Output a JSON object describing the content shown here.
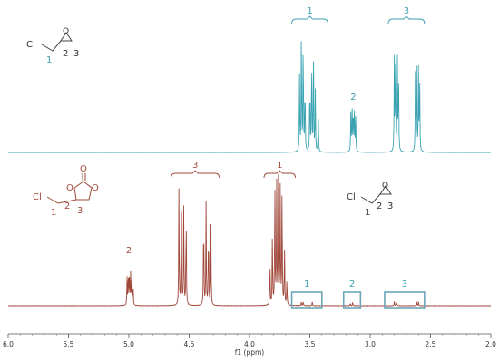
{
  "colors": {
    "top_spectrum": "#3aa3b2",
    "bottom_spectrum": "#a0473a",
    "top_labels": "#3d9fad",
    "bottom_labels": "#a04a38",
    "structure_lines": "#444444",
    "highlight_box": "#6aa6b8"
  },
  "chart_data": {
    "type": "line",
    "xlabel": "f1 (ppm)",
    "xlim": [
      6.0,
      2.0
    ],
    "x_reversed": true,
    "xticks": [
      "6.0",
      "5.5",
      "5.0",
      "4.5",
      "4.0",
      "3.5",
      "3.0",
      "2.5",
      "2.0"
    ],
    "series": [
      {
        "id": "top",
        "peaks": [
          {
            "ppm": 3.585,
            "height": 0.62
          },
          {
            "ppm": 3.57,
            "height": 0.98
          },
          {
            "ppm": 3.555,
            "height": 1.0
          },
          {
            "ppm": 3.54,
            "height": 0.6
          },
          {
            "ppm": 3.5,
            "height": 0.6
          },
          {
            "ppm": 3.485,
            "height": 0.82
          },
          {
            "ppm": 3.47,
            "height": 0.8
          },
          {
            "ppm": 3.455,
            "height": 0.5
          },
          {
            "ppm": 3.43,
            "height": 0.3
          },
          {
            "ppm": 3.16,
            "height": 0.3
          },
          {
            "ppm": 3.15,
            "height": 0.36
          },
          {
            "ppm": 3.14,
            "height": 0.38
          },
          {
            "ppm": 3.13,
            "height": 0.34
          },
          {
            "ppm": 3.12,
            "height": 0.26
          },
          {
            "ppm": 2.8,
            "height": 0.72
          },
          {
            "ppm": 2.79,
            "height": 0.76
          },
          {
            "ppm": 2.775,
            "height": 0.74
          },
          {
            "ppm": 2.765,
            "height": 0.7
          },
          {
            "ppm": 2.625,
            "height": 0.63
          },
          {
            "ppm": 2.615,
            "height": 0.66
          },
          {
            "ppm": 2.6,
            "height": 0.64
          },
          {
            "ppm": 2.59,
            "height": 0.6
          }
        ],
        "annotations": [
          {
            "label": "1",
            "from": 3.65,
            "to": 3.35,
            "bracket": true
          },
          {
            "label": "2",
            "at": 3.14,
            "bracket": false
          },
          {
            "label": "3",
            "from": 2.85,
            "to": 2.55,
            "bracket": true
          }
        ],
        "structure_labels": {
          "cl": "Cl",
          "n1": "1",
          "n2": "2",
          "n3": "3",
          "o": "O"
        }
      },
      {
        "id": "bottom",
        "peaks": [
          {
            "ppm": 5.015,
            "height": 0.22
          },
          {
            "ppm": 5.005,
            "height": 0.26
          },
          {
            "ppm": 4.995,
            "height": 0.27
          },
          {
            "ppm": 4.985,
            "height": 0.25
          },
          {
            "ppm": 4.975,
            "height": 0.2
          },
          {
            "ppm": 4.965,
            "height": 0.16
          },
          {
            "ppm": 4.585,
            "height": 0.93
          },
          {
            "ppm": 4.565,
            "height": 0.97
          },
          {
            "ppm": 4.545,
            "height": 0.78
          },
          {
            "ppm": 4.525,
            "height": 0.78
          },
          {
            "ppm": 4.38,
            "height": 0.77
          },
          {
            "ppm": 4.36,
            "height": 0.79
          },
          {
            "ppm": 4.34,
            "height": 0.66
          },
          {
            "ppm": 4.32,
            "height": 0.62
          },
          {
            "ppm": 3.83,
            "height": 0.32
          },
          {
            "ppm": 3.81,
            "height": 0.58
          },
          {
            "ppm": 3.79,
            "height": 1.0
          },
          {
            "ppm": 3.775,
            "height": 0.97
          },
          {
            "ppm": 3.76,
            "height": 0.96
          },
          {
            "ppm": 3.745,
            "height": 0.93
          },
          {
            "ppm": 3.73,
            "height": 0.95
          },
          {
            "ppm": 3.71,
            "height": 0.48
          },
          {
            "ppm": 3.69,
            "height": 0.2
          },
          {
            "ppm": 3.57,
            "height": 0.03
          },
          {
            "ppm": 3.555,
            "height": 0.035
          },
          {
            "ppm": 3.48,
            "height": 0.03
          },
          {
            "ppm": 3.165,
            "height": 0.02
          },
          {
            "ppm": 3.145,
            "height": 0.025
          },
          {
            "ppm": 2.8,
            "height": 0.03
          },
          {
            "ppm": 2.78,
            "height": 0.03
          },
          {
            "ppm": 2.615,
            "height": 0.03
          },
          {
            "ppm": 2.6,
            "height": 0.03
          }
        ],
        "annotations": [
          {
            "label": "3",
            "from": 4.65,
            "to": 4.25,
            "bracket": true
          },
          {
            "label": "1",
            "from": 3.88,
            "to": 3.62,
            "bracket": true
          },
          {
            "label": "2",
            "at": 5.0,
            "bracket": false
          }
        ],
        "highlight_boxes": [
          {
            "label": "1",
            "from": 3.65,
            "to": 3.4
          },
          {
            "label": "2",
            "from": 3.22,
            "to": 3.08
          },
          {
            "label": "3",
            "from": 2.88,
            "to": 2.55
          }
        ],
        "structure_labels": {
          "cl": "Cl",
          "n1": "1",
          "n2": "2",
          "n3": "3",
          "o_ring_left": "O",
          "o_ring_right": "O",
          "o_carbonyl": "O"
        },
        "inset_structure_labels": {
          "cl": "Cl",
          "n1": "1",
          "n2": "2",
          "n3": "3",
          "o": "O"
        }
      }
    ]
  }
}
